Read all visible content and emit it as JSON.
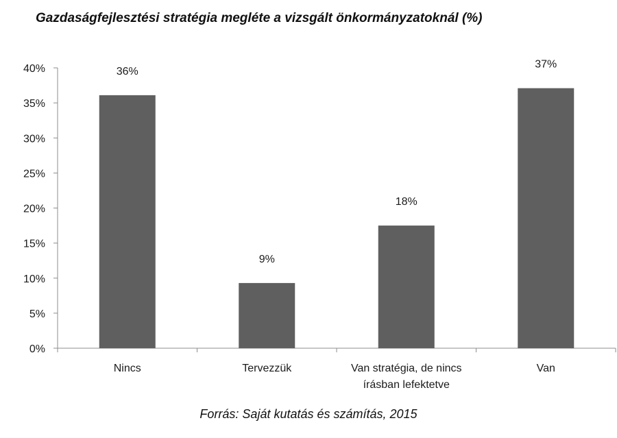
{
  "chart_data": {
    "type": "bar",
    "title": "Gazdaságfejlesztési stratégia megléte a vizsgált önkormányzatoknál (%)",
    "categories": [
      [
        "Nincs"
      ],
      [
        "Tervezzük"
      ],
      [
        "Van stratégia, de nincs",
        "írásban lefektetve"
      ],
      [
        "Van"
      ]
    ],
    "values": [
      36,
      9,
      18,
      37
    ],
    "bar_heights": [
      36.1,
      9.3,
      17.5,
      37.1
    ],
    "data_labels": [
      "36%",
      "9%",
      "18%",
      "37%"
    ],
    "yticks": [
      "0%",
      "5%",
      "10%",
      "15%",
      "20%",
      "25%",
      "30%",
      "35%",
      "40%"
    ],
    "ylim": [
      0,
      40
    ],
    "ystep": 5,
    "grid": false,
    "legend": "none",
    "bar_color": "#5f5f5f",
    "axis_color": "#8c8c8c",
    "source": "Forrás: Saját kutatás és számítás, 2015"
  }
}
